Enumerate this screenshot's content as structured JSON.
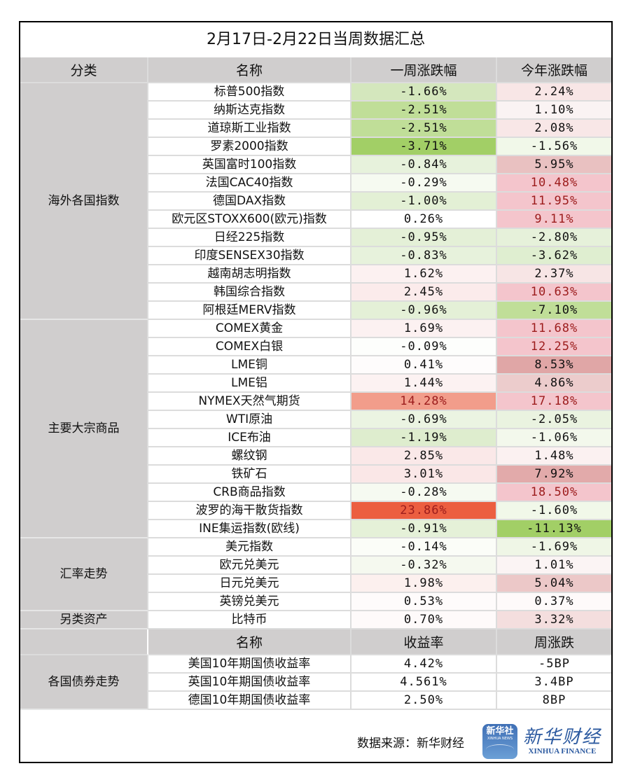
{
  "title": "2月17日-2月22日当周数据汇总",
  "header": {
    "category": "分类",
    "name": "名称",
    "weekly": "一周涨跌幅",
    "ytd": "今年涨跌幅"
  },
  "colors": {
    "header_bg": "#d0cece",
    "grid": "#dcdcdc",
    "red_text": "#9c1c1c",
    "brand_blue": "#2c5aa0"
  },
  "groups": [
    {
      "category": "海外各国指数",
      "rows": [
        {
          "name": "标普500指数",
          "weekly": "-1.66%",
          "weekly_bg": "#d4e7bd",
          "ytd": "2.24%",
          "ytd_bg": "#f8e6e6"
        },
        {
          "name": "纳斯达克指数",
          "weekly": "-2.51%",
          "weekly_bg": "#c0de98",
          "ytd": "1.10%",
          "ytd_bg": "#faf3f3"
        },
        {
          "name": "道琼斯工业指数",
          "weekly": "-2.51%",
          "weekly_bg": "#c0de98",
          "ytd": "2.08%",
          "ytd_bg": "#f8e7e7"
        },
        {
          "name": "罗素2000指数",
          "weekly": "-3.71%",
          "weekly_bg": "#a2cf66",
          "ytd": "-1.56%",
          "ytd_bg": "#f1f8e9"
        },
        {
          "name": "英国富时100指数",
          "weekly": "-0.84%",
          "weekly_bg": "#e7f2dc",
          "ytd": "5.95%",
          "ytd_bg": "#e9c1c1"
        },
        {
          "name": "法国CAC40指数",
          "weekly": "-0.29%",
          "weekly_bg": "#f6faf1",
          "ytd": "10.48%",
          "ytd_bg": "#f4c5cc",
          "ytd_red": true
        },
        {
          "name": "德国DAX指数",
          "weekly": "-1.00%",
          "weekly_bg": "#e3f0d5",
          "ytd": "11.95%",
          "ytd_bg": "#f4c5cc",
          "ytd_red": true
        },
        {
          "name": "欧元区STOXX600(欧元)指数",
          "weekly": "0.26%",
          "weekly_bg": "#ffffff",
          "ytd": "9.11%",
          "ytd_bg": "#f4c5cc",
          "ytd_red": true
        },
        {
          "name": "日经225指数",
          "weekly": "-0.95%",
          "weekly_bg": "#e4f0d7",
          "ytd": "-2.80%",
          "ytd_bg": "#e6f1da"
        },
        {
          "name": "印度SENSEX30指数",
          "weekly": "-0.83%",
          "weekly_bg": "#e7f2dc",
          "ytd": "-3.62%",
          "ytd_bg": "#dfeed0"
        },
        {
          "name": "越南胡志明指数",
          "weekly": "1.62%",
          "weekly_bg": "#fcf1f1",
          "ytd": "2.37%",
          "ytd_bg": "#f7e5e5"
        },
        {
          "name": "韩国综合指数",
          "weekly": "2.45%",
          "weekly_bg": "#fbebeb",
          "ytd": "10.63%",
          "ytd_bg": "#f4c5cc",
          "ytd_red": true
        },
        {
          "name": "阿根廷MERV指数",
          "weekly": "-0.96%",
          "weekly_bg": "#e4f0d7",
          "ytd": "-7.10%",
          "ytd_bg": "#c0de98"
        }
      ]
    },
    {
      "category": "主要大宗商品",
      "rows": [
        {
          "name": "COMEX黄金",
          "weekly": "1.69%",
          "weekly_bg": "#fcf1f1",
          "ytd": "11.68%",
          "ytd_bg": "#f4c5cc",
          "ytd_red": true
        },
        {
          "name": "COMEX白银",
          "weekly": "-0.09%",
          "weekly_bg": "#fdfefc",
          "ytd": "12.25%",
          "ytd_bg": "#f4c5cc",
          "ytd_red": true
        },
        {
          "name": "LME铜",
          "weekly": "0.41%",
          "weekly_bg": "#fefcfc",
          "ytd": "8.53%",
          "ytd_bg": "#e0a6a6"
        },
        {
          "name": "LME铝",
          "weekly": "1.44%",
          "weekly_bg": "#fcf2f2",
          "ytd": "4.86%",
          "ytd_bg": "#eccccc"
        },
        {
          "name": "NYMEX天然气期货",
          "weekly": "14.28%",
          "weekly_bg": "#f29d8b",
          "weekly_red": true,
          "ytd": "17.18%",
          "ytd_bg": "#f4c5cc",
          "ytd_red": true
        },
        {
          "name": "WTI原油",
          "weekly": "-0.69%",
          "weekly_bg": "#ebf4e2",
          "ytd": "-2.05%",
          "ytd_bg": "#eaf3e0"
        },
        {
          "name": "ICE布油",
          "weekly": "-1.19%",
          "weekly_bg": "#deedce",
          "ytd": "-1.06%",
          "ytd_bg": "#f3f8ec"
        },
        {
          "name": "螺纹钢",
          "weekly": "2.85%",
          "weekly_bg": "#fae8e8",
          "ytd": "1.48%",
          "ytd_bg": "#fbf1f1"
        },
        {
          "name": "铁矿石",
          "weekly": "3.01%",
          "weekly_bg": "#fae7e7",
          "ytd": "7.92%",
          "ytd_bg": "#e2aaaa"
        },
        {
          "name": "CRB商品指数",
          "weekly": "-0.28%",
          "weekly_bg": "#f6faf1",
          "ytd": "18.50%",
          "ytd_bg": "#f4c5cc",
          "ytd_red": true
        },
        {
          "name": "波罗的海干散货指数",
          "weekly": "23.86%",
          "weekly_bg": "#ec5e40",
          "weekly_red": true,
          "ytd": "-1.60%",
          "ytd_bg": "#f1f8e9"
        },
        {
          "name": "INE集运指数(欧线)",
          "weekly": "-0.91%",
          "weekly_bg": "#e5f1d8",
          "ytd": "-11.13%",
          "ytd_bg": "#a2cf66"
        }
      ]
    },
    {
      "category": "汇率走势",
      "rows": [
        {
          "name": "美元指数",
          "weekly": "-0.14%",
          "weekly_bg": "#fbfdf8",
          "ytd": "-1.69%",
          "ytd_bg": "#eff6e6"
        },
        {
          "name": "欧元兑美元",
          "weekly": "-0.32%",
          "weekly_bg": "#f5f9ef",
          "ytd": "1.01%",
          "ytd_bg": "#fbf4f4"
        },
        {
          "name": "日元兑美元",
          "weekly": "1.98%",
          "weekly_bg": "#fcf0ee",
          "ytd": "5.04%",
          "ytd_bg": "#ecc8c8"
        },
        {
          "name": "英镑兑美元",
          "weekly": "0.53%",
          "weekly_bg": "#fefbfb",
          "ytd": "0.37%",
          "ytd_bg": "#fefafa"
        }
      ]
    },
    {
      "category": "另类资产",
      "rows": [
        {
          "name": "比特币",
          "weekly": "0.70%",
          "weekly_bg": "#fefafa",
          "ytd": "3.32%",
          "ytd_bg": "#f4dede"
        }
      ]
    }
  ],
  "bonds": {
    "header": {
      "name": "名称",
      "yield": "收益率",
      "change": "周涨跌"
    },
    "category": "各国债券走势",
    "rows": [
      {
        "name": "美国10年期国债收益率",
        "yield": "4.42%",
        "change": "-5BP"
      },
      {
        "name": "英国10年期国债收益率",
        "yield": "4.561%",
        "change": "3.4BP"
      },
      {
        "name": "德国10年期国债收益率",
        "yield": "2.50%",
        "change": "8BP"
      }
    ]
  },
  "footer": {
    "source": "数据来源：新华财经",
    "logo_box_line1": "新华社",
    "logo_box_line2": "XINHUA NEWS",
    "brand_cn": "新华财经",
    "brand_en": "XINHUA FINANCE"
  }
}
